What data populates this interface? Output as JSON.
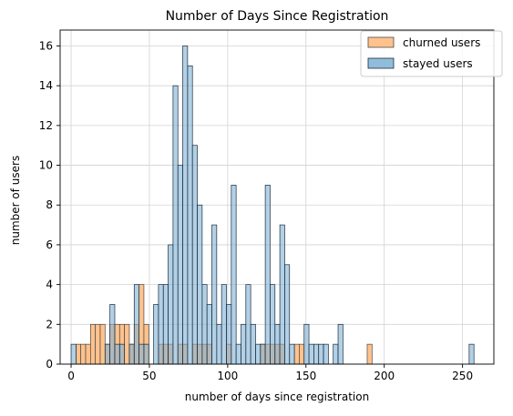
{
  "chart_data": {
    "type": "bar",
    "title": "Number of Days Since Registration",
    "xlabel": "number of days since registration",
    "ylabel": "number of users",
    "xlim": [
      -7,
      270
    ],
    "ylim": [
      0,
      16.8
    ],
    "xticks": [
      0,
      50,
      100,
      150,
      200,
      250
    ],
    "yticks": [
      0,
      2,
      4,
      6,
      8,
      10,
      12,
      14,
      16
    ],
    "bin_width": 3.1,
    "grid": true,
    "legend_position": "top-right",
    "series": [
      {
        "name": "churned users",
        "color": "#ffbf86",
        "edge": "#4a4a4a",
        "bins": [
          {
            "x": 3.1,
            "y": 1
          },
          {
            "x": 6.2,
            "y": 1
          },
          {
            "x": 9.3,
            "y": 1
          },
          {
            "x": 12.4,
            "y": 2
          },
          {
            "x": 15.5,
            "y": 2
          },
          {
            "x": 18.6,
            "y": 2
          },
          {
            "x": 21.7,
            "y": 1
          },
          {
            "x": 24.8,
            "y": 2
          },
          {
            "x": 27.9,
            "y": 2
          },
          {
            "x": 31.0,
            "y": 2
          },
          {
            "x": 34.1,
            "y": 2
          },
          {
            "x": 37.2,
            "y": 1
          },
          {
            "x": 40.3,
            "y": 2
          },
          {
            "x": 43.4,
            "y": 4
          },
          {
            "x": 46.5,
            "y": 2
          },
          {
            "x": 55.8,
            "y": 1
          },
          {
            "x": 58.9,
            "y": 1
          },
          {
            "x": 62.0,
            "y": 1
          },
          {
            "x": 68.2,
            "y": 1
          },
          {
            "x": 71.3,
            "y": 1
          },
          {
            "x": 77.5,
            "y": 1
          },
          {
            "x": 80.6,
            "y": 1
          },
          {
            "x": 83.7,
            "y": 1
          },
          {
            "x": 86.8,
            "y": 1
          },
          {
            "x": 99.2,
            "y": 1
          },
          {
            "x": 120.9,
            "y": 1
          },
          {
            "x": 124.0,
            "y": 1
          },
          {
            "x": 127.1,
            "y": 1
          },
          {
            "x": 130.2,
            "y": 1
          },
          {
            "x": 133.3,
            "y": 1
          },
          {
            "x": 142.6,
            "y": 1
          },
          {
            "x": 145.7,
            "y": 1
          },
          {
            "x": 189.1,
            "y": 1
          }
        ]
      },
      {
        "name": "stayed users",
        "color": "#7eb1d5",
        "edge": "#1c2c3c",
        "bins": [
          {
            "x": 0.0,
            "y": 1
          },
          {
            "x": 21.7,
            "y": 1
          },
          {
            "x": 24.8,
            "y": 3
          },
          {
            "x": 27.9,
            "y": 1
          },
          {
            "x": 31.0,
            "y": 1
          },
          {
            "x": 37.2,
            "y": 1
          },
          {
            "x": 40.3,
            "y": 4
          },
          {
            "x": 43.4,
            "y": 1
          },
          {
            "x": 46.5,
            "y": 1
          },
          {
            "x": 52.7,
            "y": 3
          },
          {
            "x": 55.8,
            "y": 4
          },
          {
            "x": 58.9,
            "y": 4
          },
          {
            "x": 62.0,
            "y": 6
          },
          {
            "x": 65.1,
            "y": 14
          },
          {
            "x": 68.2,
            "y": 10
          },
          {
            "x": 71.3,
            "y": 16
          },
          {
            "x": 74.4,
            "y": 15
          },
          {
            "x": 77.5,
            "y": 11
          },
          {
            "x": 80.6,
            "y": 8
          },
          {
            "x": 83.7,
            "y": 4
          },
          {
            "x": 86.8,
            "y": 3
          },
          {
            "x": 89.9,
            "y": 7
          },
          {
            "x": 93.0,
            "y": 2
          },
          {
            "x": 96.1,
            "y": 4
          },
          {
            "x": 99.2,
            "y": 3
          },
          {
            "x": 102.3,
            "y": 9
          },
          {
            "x": 105.4,
            "y": 1
          },
          {
            "x": 108.5,
            "y": 2
          },
          {
            "x": 111.6,
            "y": 4
          },
          {
            "x": 114.7,
            "y": 2
          },
          {
            "x": 117.8,
            "y": 1
          },
          {
            "x": 120.9,
            "y": 1
          },
          {
            "x": 124.0,
            "y": 9
          },
          {
            "x": 127.1,
            "y": 4
          },
          {
            "x": 130.2,
            "y": 2
          },
          {
            "x": 133.3,
            "y": 7
          },
          {
            "x": 136.4,
            "y": 5
          },
          {
            "x": 139.5,
            "y": 1
          },
          {
            "x": 148.8,
            "y": 2
          },
          {
            "x": 151.9,
            "y": 1
          },
          {
            "x": 155.0,
            "y": 1
          },
          {
            "x": 158.1,
            "y": 1
          },
          {
            "x": 161.2,
            "y": 1
          },
          {
            "x": 167.4,
            "y": 1
          },
          {
            "x": 170.5,
            "y": 2
          },
          {
            "x": 254.2,
            "y": 1
          }
        ]
      }
    ]
  }
}
